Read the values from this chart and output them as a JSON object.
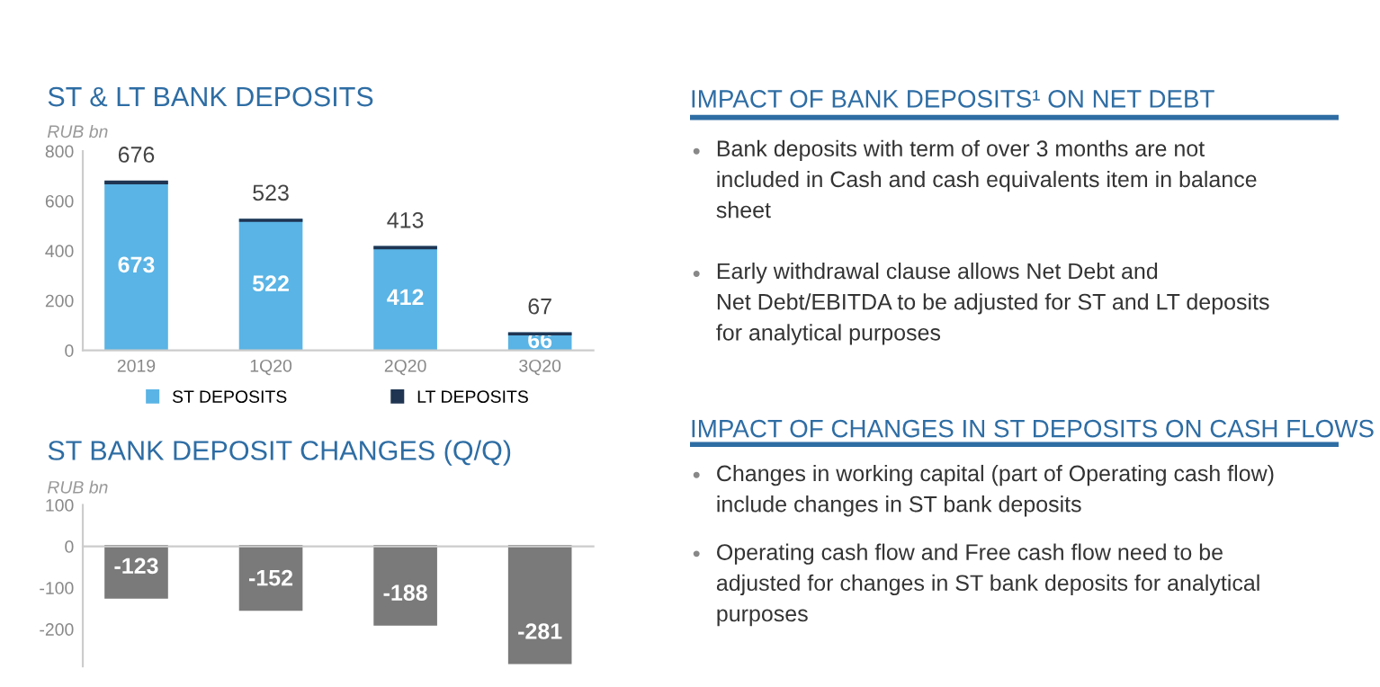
{
  "chart_data": [
    {
      "type": "bar",
      "title": "ST & LT BANK DEPOSITS",
      "ylabel": "RUB bn",
      "categories": [
        "2019",
        "1Q20",
        "2Q20",
        "3Q20"
      ],
      "stacked": true,
      "series": [
        {
          "name": "ST DEPOSITS",
          "color": "#5ab4e5",
          "values": [
            673,
            522,
            412,
            66
          ],
          "value_labels": [
            "673",
            "522",
            "412",
            "66"
          ]
        },
        {
          "name": "LT DEPOSITS",
          "color": "#1f3552",
          "values": [
            3,
            1,
            1,
            1
          ]
        }
      ],
      "totals": [
        "676",
        "523",
        "413",
        "67"
      ],
      "ylim": [
        0,
        800
      ],
      "yticks": [
        0,
        200,
        400,
        600,
        800
      ],
      "legend": "bottom"
    },
    {
      "type": "bar",
      "title": "ST BANK DEPOSIT CHANGES (Q/Q)",
      "ylabel": "RUB bn",
      "categories": [
        null,
        null,
        null,
        null
      ],
      "values": [
        -123,
        -152,
        -188,
        -281
      ],
      "color": "#7a7a7a",
      "data_labels": true,
      "ylim": [
        -290,
        100
      ],
      "yticks": [
        100,
        0,
        {
          "value": -100,
          "label": "-100"
        },
        {
          "value": -200,
          "label": "-200"
        }
      ]
    },
    {
      "type": "other",
      "title": "IMPACT OF BANK DEPOSITS¹ ON NET DEBT",
      "annotations": [
        "Bank deposits with term of over 3 months are not\nincluded in Cash and cash equivalents item in balance\nsheet",
        "Early withdrawal clause allows Net Debt and\nNet Debt/EBITDA to be adjusted for ST and LT deposits\nfor analytical purposes"
      ]
    },
    {
      "type": "other",
      "title": "IMPACT OF CHANGES IN ST DEPOSITS ON CASH FLOWS",
      "annotations": [
        "Changes in working capital (part of Operating cash flow)\ninclude changes in ST bank deposits",
        "Operating cash flow and Free cash flow need to be\nadjusted for changes in ST bank deposits for analytical\npurposes"
      ]
    }
  ]
}
